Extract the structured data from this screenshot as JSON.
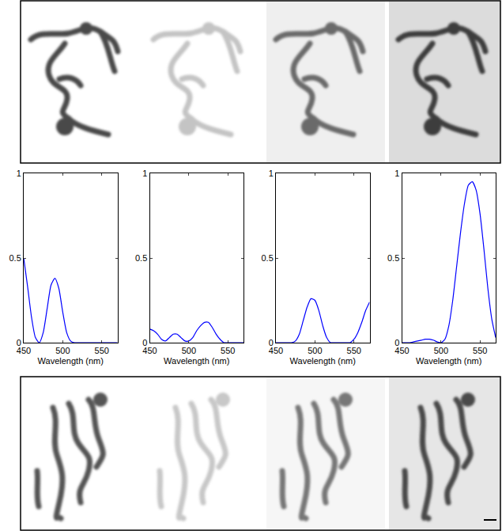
{
  "chart_data": [
    {
      "type": "line",
      "xlabel": "Wavelength (nm)",
      "x": [
        450,
        455,
        460,
        465,
        470,
        475,
        480,
        485,
        490,
        495,
        500,
        505,
        510,
        515,
        520,
        525,
        530,
        535,
        540,
        545,
        550,
        555,
        560,
        565,
        570
      ],
      "series": [
        {
          "color": "#0000ff",
          "values": [
            0.5,
            0.33,
            0.15,
            0.03,
            0.0,
            0.06,
            0.2,
            0.34,
            0.38,
            0.32,
            0.18,
            0.06,
            0.01,
            0,
            0,
            0,
            0,
            0,
            0,
            0,
            0,
            0,
            0,
            0,
            0
          ]
        }
      ],
      "xlim": [
        450,
        570
      ],
      "xticks": [
        450,
        500,
        550
      ],
      "ylim": [
        0,
        1
      ],
      "yticks": [
        0,
        0.5,
        1
      ]
    },
    {
      "type": "line",
      "xlabel": "Wavelength (nm)",
      "x": [
        450,
        455,
        460,
        465,
        470,
        475,
        480,
        485,
        490,
        495,
        500,
        505,
        510,
        515,
        520,
        525,
        530,
        535,
        540,
        545,
        550,
        555,
        560,
        565,
        570
      ],
      "series": [
        {
          "color": "#0000ff",
          "values": [
            0.08,
            0.07,
            0.05,
            0.02,
            0.01,
            0.03,
            0.05,
            0.05,
            0.03,
            0.01,
            0.01,
            0.03,
            0.07,
            0.1,
            0.12,
            0.12,
            0.09,
            0.05,
            0.02,
            0,
            0,
            0,
            0,
            0,
            0
          ]
        }
      ],
      "xlim": [
        450,
        570
      ],
      "xticks": [
        450,
        500,
        550
      ],
      "ylim": [
        0,
        1
      ],
      "yticks": [
        0,
        0.5,
        1
      ]
    },
    {
      "type": "line",
      "xlabel": "Wavelength (nm)",
      "x": [
        450,
        455,
        460,
        465,
        470,
        475,
        480,
        485,
        490,
        495,
        500,
        505,
        510,
        515,
        520,
        525,
        530,
        535,
        540,
        545,
        550,
        555,
        560,
        565,
        570
      ],
      "series": [
        {
          "color": "#0000ff",
          "values": [
            0,
            0,
            0,
            0,
            0,
            0.01,
            0.05,
            0.13,
            0.21,
            0.26,
            0.25,
            0.19,
            0.1,
            0.03,
            0,
            0,
            0,
            0,
            0,
            0,
            0.02,
            0.06,
            0.12,
            0.19,
            0.24
          ]
        }
      ],
      "xlim": [
        450,
        570
      ],
      "xticks": [
        450,
        500,
        550
      ],
      "ylim": [
        0,
        1
      ],
      "yticks": [
        0,
        0.5,
        1
      ]
    },
    {
      "type": "line",
      "xlabel": "Wavelength (nm)",
      "x": [
        450,
        455,
        460,
        465,
        470,
        475,
        480,
        485,
        490,
        495,
        500,
        505,
        510,
        515,
        520,
        525,
        530,
        535,
        540,
        545,
        550,
        555,
        560,
        565,
        570
      ],
      "series": [
        {
          "color": "#0000ff",
          "values": [
            0,
            0,
            0,
            0.005,
            0.01,
            0.015,
            0.02,
            0.02,
            0.015,
            0.005,
            0,
            0.02,
            0.1,
            0.25,
            0.45,
            0.65,
            0.82,
            0.93,
            0.95,
            0.9,
            0.76,
            0.55,
            0.32,
            0.14,
            0.03
          ]
        }
      ],
      "xlim": [
        450,
        570
      ],
      "xticks": [
        450,
        500,
        550
      ],
      "ylim": [
        0,
        1
      ],
      "yticks": [
        0,
        0.5,
        1
      ]
    }
  ]
}
